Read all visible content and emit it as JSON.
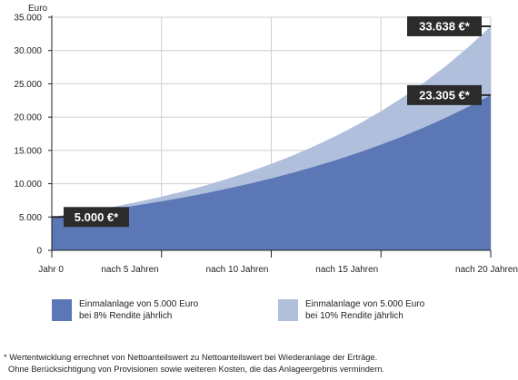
{
  "chart_data": {
    "type": "area",
    "ylabel": "Euro",
    "ylim": [
      0,
      35000
    ],
    "y_ticks": [
      "0",
      "5.000",
      "10.000",
      "15.000",
      "20.000",
      "25.000",
      "30.000",
      "35.000"
    ],
    "y_tick_values": [
      0,
      5000,
      10000,
      15000,
      20000,
      25000,
      30000,
      35000
    ],
    "x_ticks": [
      "Jahr 0",
      "nach 5 Jahren",
      "nach 10 Jahren",
      "nach 15 Jahren",
      "nach 20 Jahren"
    ],
    "x_tick_values": [
      0,
      5,
      10,
      15,
      20
    ],
    "xlim": [
      0,
      20
    ],
    "grid": true,
    "x": [
      0,
      1,
      2,
      3,
      4,
      5,
      6,
      7,
      8,
      9,
      10,
      11,
      12,
      13,
      14,
      15,
      16,
      17,
      18,
      19,
      20
    ],
    "series": [
      {
        "name": "Einmalanlage von 5.000 Euro bei 10% Rendite jährlich",
        "color": "#b0bfdc",
        "values": [
          5000,
          5500,
          6050,
          6655,
          7321,
          8053,
          8858,
          9744,
          10718,
          11790,
          12969,
          14266,
          15692,
          17261,
          18987,
          20886,
          22975,
          25272,
          27800,
          30580,
          33638
        ]
      },
      {
        "name": "Einmalanlage von 5.000 Euro bei 8% Rendite jährlich",
        "color": "#5b77b5",
        "values": [
          5000,
          5400,
          5832,
          6299,
          6802,
          7347,
          7934,
          8569,
          9255,
          9995,
          10795,
          11658,
          12591,
          13598,
          14686,
          15861,
          17130,
          18500,
          19980,
          21579,
          23305
        ]
      }
    ],
    "callouts": [
      {
        "label": "5.000 €*",
        "value": 5000,
        "at": "start"
      },
      {
        "label": "23.305 €*",
        "value": 23305,
        "at": "end"
      },
      {
        "label": "33.638 €*",
        "value": 33638,
        "at": "end"
      }
    ]
  },
  "legend": [
    {
      "line1": "Einmalanlage von 5.000 Euro",
      "line2": "bei 8% Rendite jährlich",
      "color": "#5b77b5"
    },
    {
      "line1": "Einmalanlage von 5.000 Euro",
      "line2": "bei 10% Rendite jährlich",
      "color": "#b0bfdc"
    }
  ],
  "footnote": {
    "line1": "* Wertentwicklung errechnet von Nettoanteilswert zu Nettoanteilswert bei Wiederanlage der Erträge.",
    "line2": "Ohne Berücksichtigung von Provisionen sowie weiteren Kosten, die das Anlageergebnis vermindern."
  },
  "colors": {
    "callout_bg": "#2b2b2b",
    "grid": "#cfcfcf",
    "axis": "#222222"
  }
}
